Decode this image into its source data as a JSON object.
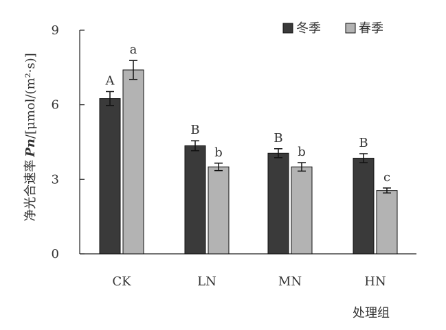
{
  "chart_data": {
    "type": "bar",
    "categories": [
      "CK",
      "LN",
      "MN",
      "HN"
    ],
    "series": [
      {
        "name": "冬季",
        "values": [
          6.25,
          4.35,
          4.05,
          3.85
        ],
        "errors": [
          0.28,
          0.2,
          0.18,
          0.18
        ],
        "labels": [
          "A",
          "B",
          "B",
          "B"
        ],
        "color": "#3a3a3a"
      },
      {
        "name": "春季",
        "values": [
          7.4,
          3.5,
          3.5,
          2.55
        ],
        "errors": [
          0.38,
          0.15,
          0.17,
          0.1
        ],
        "labels": [
          "a",
          "b",
          "b",
          "c"
        ],
        "color": "#b3b3b3"
      }
    ],
    "ylabel": "净光合速率 Pn/[μmol/(m²·s)]",
    "xlabel": "处理组",
    "ylim": [
      0,
      9
    ],
    "yticks": [
      0,
      3,
      6,
      9
    ],
    "grid": false,
    "legend": "top-right"
  }
}
